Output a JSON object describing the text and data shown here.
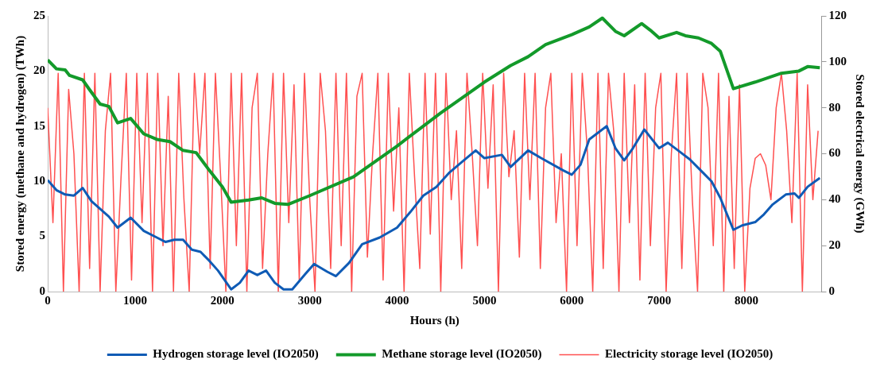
{
  "chart_data": {
    "type": "line",
    "xlabel": "Hours (h)",
    "ylabel": "Stored energy (methane and hydrogen) (TWh)",
    "y2label": "Stored electrical energy (GWh)",
    "xlim": [
      0,
      8860
    ],
    "xticks": [
      0,
      1000,
      2000,
      3000,
      4000,
      5000,
      6000,
      7000,
      8000
    ],
    "ylim": [
      0,
      25
    ],
    "yticks": [
      0,
      5,
      10,
      15,
      20,
      25
    ],
    "y2lim": [
      0,
      120
    ],
    "y2ticks": [
      0,
      20,
      40,
      60,
      80,
      100,
      120
    ],
    "grid": false,
    "legend": "bottom",
    "marker": "none",
    "line_style": "solid",
    "series": [
      {
        "name": "Hydrogen storage level (IO2050)",
        "color": "#0f5bb5",
        "x": [
          0,
          100,
          200,
          300,
          400,
          500,
          600,
          700,
          800,
          950,
          1100,
          1250,
          1350,
          1450,
          1550,
          1650,
          1750,
          1850,
          1950,
          2100,
          2200,
          2300,
          2400,
          2500,
          2600,
          2700,
          2800,
          2950,
          3050,
          3200,
          3300,
          3450,
          3600,
          3800,
          4000,
          4150,
          4300,
          4450,
          4600,
          4750,
          4900,
          5000,
          5200,
          5300,
          5500,
          5650,
          5900,
          6000,
          6100,
          6200,
          6400,
          6500,
          6600,
          6700,
          6830,
          7000,
          7100,
          7250,
          7350,
          7500,
          7600,
          7700,
          7850,
          7950,
          8100,
          8200,
          8300,
          8450,
          8550,
          8600,
          8700,
          8840
        ],
        "values": [
          10.1,
          9.2,
          8.8,
          8.7,
          9.4,
          8.2,
          7.5,
          6.8,
          5.8,
          6.7,
          5.5,
          4.9,
          4.5,
          4.7,
          4.7,
          3.8,
          3.6,
          2.8,
          1.9,
          0.2,
          0.8,
          1.9,
          1.5,
          1.9,
          0.8,
          0.2,
          0.2,
          1.6,
          2.5,
          1.8,
          1.4,
          2.6,
          4.3,
          4.9,
          5.8,
          7.2,
          8.7,
          9.5,
          10.8,
          11.8,
          12.8,
          12.1,
          12.4,
          11.3,
          12.8,
          12.1,
          11.0,
          10.6,
          11.5,
          13.8,
          15.0,
          13.0,
          11.9,
          13.0,
          14.7,
          13.0,
          13.5,
          12.6,
          12.0,
          10.8,
          10.0,
          8.5,
          5.6,
          6.0,
          6.3,
          7.0,
          7.9,
          8.8,
          8.9,
          8.5,
          9.5,
          10.3
        ]
      },
      {
        "name": "Methane storage level (IO2050)",
        "color": "#139a2a",
        "x": [
          0,
          100,
          200,
          250,
          400,
          480,
          600,
          700,
          800,
          950,
          1100,
          1250,
          1400,
          1550,
          1700,
          1850,
          2000,
          2100,
          2300,
          2450,
          2600,
          2750,
          3000,
          3500,
          4000,
          4500,
          5000,
          5300,
          5500,
          5700,
          6000,
          6200,
          6350,
          6500,
          6600,
          6800,
          6900,
          7000,
          7200,
          7300,
          7450,
          7600,
          7700,
          7850,
          8100,
          8400,
          8600,
          8700,
          8840
        ],
        "values": [
          21.0,
          20.2,
          20.1,
          19.6,
          19.2,
          18.3,
          17.0,
          16.8,
          15.3,
          15.7,
          14.3,
          13.8,
          13.6,
          12.8,
          12.6,
          11.0,
          9.5,
          8.1,
          8.3,
          8.5,
          8.0,
          7.9,
          8.7,
          10.4,
          13.2,
          16.2,
          19.0,
          20.5,
          21.3,
          22.4,
          23.3,
          24.0,
          24.8,
          23.6,
          23.2,
          24.3,
          23.7,
          23.0,
          23.5,
          23.2,
          23.0,
          22.5,
          21.8,
          18.4,
          19.0,
          19.8,
          20.0,
          20.4,
          20.3
        ]
      },
      {
        "name": "Electricity storage level (IO2050)",
        "color": "#ff5050",
        "axis": "y2",
        "x": [
          0,
          60,
          120,
          180,
          240,
          300,
          360,
          420,
          480,
          540,
          600,
          660,
          720,
          780,
          840,
          900,
          960,
          1020,
          1080,
          1140,
          1200,
          1260,
          1320,
          1380,
          1440,
          1500,
          1560,
          1620,
          1680,
          1740,
          1800,
          1860,
          1920,
          1980,
          2040,
          2100,
          2160,
          2220,
          2280,
          2340,
          2400,
          2460,
          2520,
          2580,
          2640,
          2700,
          2760,
          2820,
          2880,
          2940,
          3000,
          3060,
          3120,
          3180,
          3240,
          3300,
          3360,
          3420,
          3480,
          3540,
          3600,
          3660,
          3720,
          3780,
          3840,
          3900,
          3960,
          4020,
          4080,
          4140,
          4200,
          4260,
          4320,
          4380,
          4440,
          4500,
          4560,
          4620,
          4680,
          4740,
          4800,
          4860,
          4920,
          4980,
          5040,
          5100,
          5160,
          5220,
          5280,
          5340,
          5400,
          5460,
          5520,
          5580,
          5640,
          5700,
          5760,
          5820,
          5880,
          5940,
          6000,
          6060,
          6120,
          6180,
          6240,
          6300,
          6360,
          6420,
          6480,
          6540,
          6600,
          6660,
          6720,
          6780,
          6840,
          6900,
          6960,
          7020,
          7080,
          7140,
          7200,
          7260,
          7320,
          7380,
          7440,
          7500,
          7560,
          7620,
          7680,
          7740,
          7800,
          7860,
          7920,
          7980,
          8040,
          8100,
          8160,
          8220,
          8280,
          8340,
          8400,
          8460,
          8520,
          8580,
          8640,
          8700,
          8760,
          8820
        ],
        "values": [
          80,
          30,
          95,
          0,
          88,
          60,
          0,
          95,
          10,
          95,
          0,
          70,
          95,
          0,
          50,
          95,
          5,
          95,
          30,
          95,
          0,
          95,
          20,
          85,
          0,
          95,
          40,
          0,
          95,
          60,
          95,
          10,
          95,
          50,
          0,
          95,
          20,
          95,
          0,
          80,
          95,
          10,
          60,
          95,
          0,
          95,
          30,
          90,
          5,
          95,
          40,
          0,
          95,
          70,
          10,
          95,
          20,
          95,
          0,
          85,
          95,
          15,
          60,
          95,
          5,
          95,
          35,
          80,
          0,
          95,
          50,
          10,
          95,
          25,
          95,
          0,
          95,
          40,
          70,
          10,
          95,
          60,
          20,
          95,
          45,
          90,
          0,
          95,
          50,
          70,
          15,
          95,
          40,
          95,
          10,
          80,
          95,
          30,
          60,
          0,
          95,
          20,
          95,
          60,
          0,
          95,
          10,
          95,
          70,
          0,
          95,
          30,
          90,
          5,
          95,
          20,
          80,
          95,
          0,
          60,
          95,
          10,
          95,
          40,
          0,
          95,
          80,
          20,
          95,
          0,
          85,
          10,
          90,
          0,
          45,
          58,
          60,
          55,
          40,
          80,
          95,
          70,
          30,
          95,
          0,
          90,
          40,
          70
        ]
      }
    ]
  }
}
